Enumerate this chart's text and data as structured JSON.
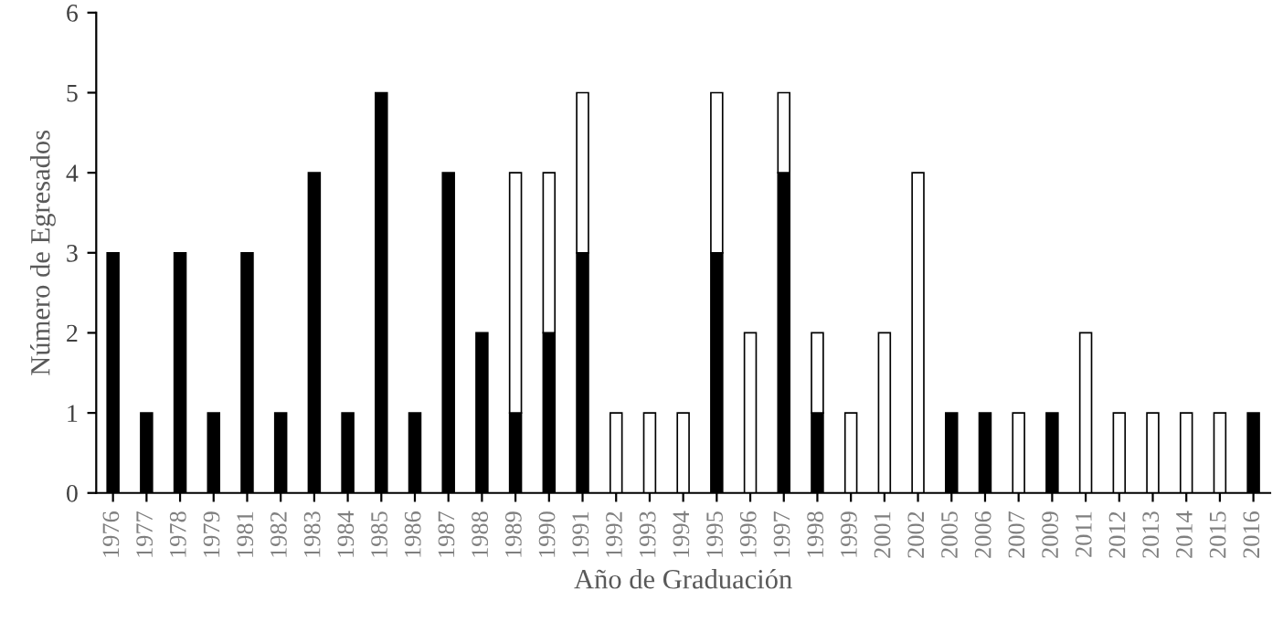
{
  "chart_data": {
    "type": "bar",
    "stacked": true,
    "xlabel": "Año de Graduación",
    "ylabel": "Número de Egresados",
    "categories": [
      "1976",
      "1977",
      "1978",
      "1979",
      "1981",
      "1982",
      "1983",
      "1984",
      "1985",
      "1986",
      "1987",
      "1988",
      "1989",
      "1990",
      "1991",
      "1992",
      "1993",
      "1994",
      "1995",
      "1996",
      "1997",
      "1998",
      "1999",
      "2001",
      "2002",
      "2005",
      "2006",
      "2007",
      "2009",
      "2011",
      "2012",
      "2013",
      "2014",
      "2015",
      "2016"
    ],
    "series": [
      {
        "color": "#000000",
        "values": [
          3,
          1,
          3,
          1,
          3,
          1,
          4,
          1,
          5,
          1,
          4,
          2,
          1,
          2,
          3,
          0,
          0,
          0,
          3,
          0,
          4,
          1,
          0,
          0,
          0,
          1,
          1,
          0,
          1,
          0,
          0,
          0,
          0,
          0,
          1
        ]
      },
      {
        "color": "#ffffff",
        "values": [
          0,
          0,
          0,
          0,
          0,
          0,
          0,
          0,
          0,
          0,
          0,
          0,
          3,
          2,
          2,
          1,
          1,
          1,
          2,
          2,
          1,
          1,
          1,
          2,
          4,
          0,
          0,
          1,
          0,
          2,
          1,
          1,
          1,
          1,
          0
        ]
      }
    ],
    "ylim": [
      0,
      6
    ],
    "yticks": [
      0,
      1,
      2,
      3,
      4,
      5,
      6
    ],
    "grid": false,
    "legend": false
  }
}
